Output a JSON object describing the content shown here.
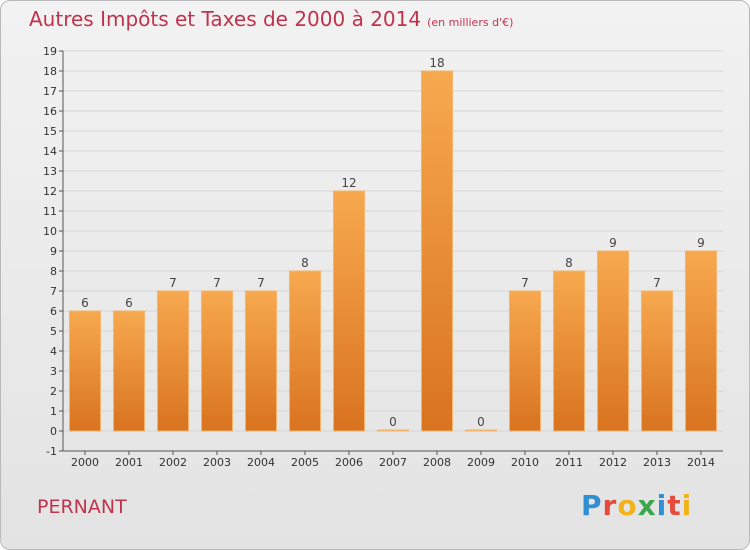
{
  "title": "Autres Impôts et Taxes de 2000 à 2014",
  "title_unit": "(en milliers d'€)",
  "commune": "PERNANT",
  "logo": {
    "text": "Proxiti",
    "letters": [
      "P",
      "r",
      "o",
      "x",
      "i",
      "t",
      "i"
    ],
    "colors": [
      "#2f8fd0",
      "#e64a3b",
      "#f2b21a",
      "#3aa84a",
      "#2f8fd0",
      "#e64a3b",
      "#f2b21a"
    ]
  },
  "colors": {
    "bar_top": "#f7a94f",
    "bar_bottom": "#d9731f",
    "title": "#c0334d",
    "grid": "#d6d6d6"
  },
  "chart_data": {
    "type": "bar",
    "categories": [
      "2000",
      "2001",
      "2002",
      "2003",
      "2004",
      "2005",
      "2006",
      "2007",
      "2008",
      "2009",
      "2010",
      "2011",
      "2012",
      "2013",
      "2014"
    ],
    "values": [
      6,
      6,
      7,
      7,
      7,
      8,
      12,
      0,
      18,
      0,
      7,
      8,
      9,
      7,
      9
    ],
    "data_labels": [
      "6",
      "6",
      "7",
      "7",
      "7",
      "8",
      "12",
      "0",
      "18",
      "0",
      "7",
      "8",
      "9",
      "7",
      "9"
    ],
    "y_ticks": [
      "-1",
      "0",
      "1",
      "2",
      "3",
      "4",
      "5",
      "6",
      "7",
      "8",
      "9",
      "10",
      "11",
      "12",
      "13",
      "14",
      "15",
      "16",
      "17",
      "18",
      "19"
    ],
    "ylim": [
      -1,
      19
    ],
    "grid": true,
    "legend": "none"
  }
}
